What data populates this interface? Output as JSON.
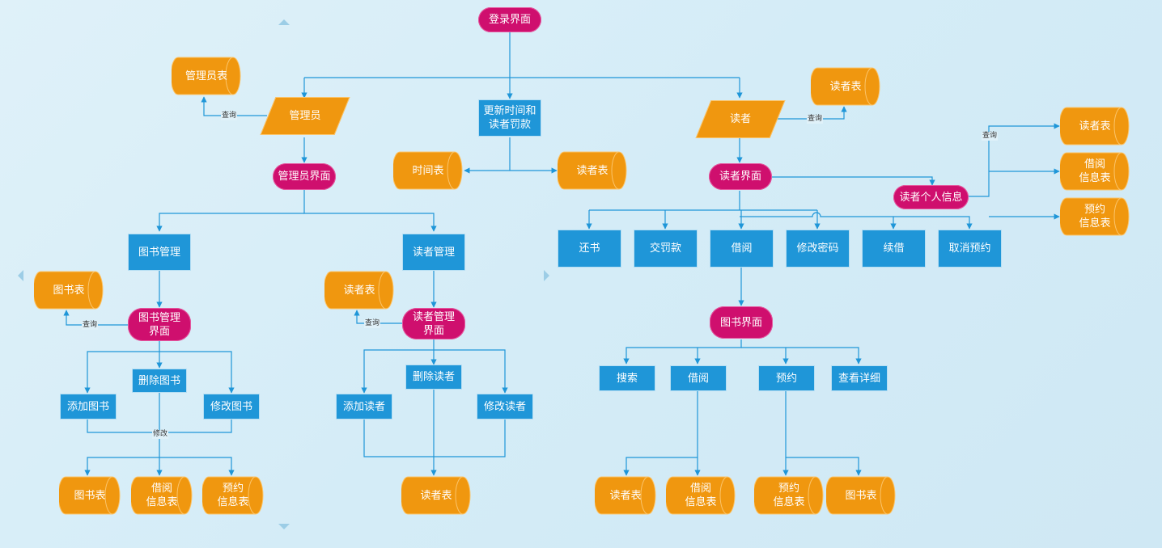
{
  "nodes": {
    "login": "登录界面",
    "admin": "管理员",
    "admin_table": "管理员表",
    "update": "更新时间和\n读者罚款",
    "time_table": "时间表",
    "reader_table_mid": "读者表",
    "reader": "读者",
    "reader_table_top": "读者表",
    "admin_ui": "管理员界面",
    "reader_ui": "读者界面",
    "reader_info": "读者个人信息",
    "ri_reader_table": "读者表",
    "ri_borrow_table": "借阅\n信息表",
    "ri_reserve_table": "预约\n信息表",
    "book_mgmt": "图书管理",
    "reader_mgmt": "读者管理",
    "book_table_1": "图书表",
    "book_mgmt_ui": "图书管理\n界面",
    "reader_table_2": "读者表",
    "reader_mgmt_ui": "读者管理\n界面",
    "del_book": "删除图书",
    "add_book": "添加图书",
    "mod_book": "修改图书",
    "del_reader": "删除读者",
    "add_reader": "添加读者",
    "mod_reader": "修改读者",
    "bm_book_table": "图书表",
    "bm_borrow_table": "借阅\n信息表",
    "bm_reserve_table": "预约\n信息表",
    "rm_reader_table": "读者表",
    "return_book": "还书",
    "pay_fine": "交罚款",
    "borrow": "借阅",
    "change_pwd": "修改密码",
    "renew": "续借",
    "cancel_reserve": "取消预约",
    "book_ui": "图书界面",
    "search": "搜索",
    "borrow2": "借阅",
    "reserve": "预约",
    "view_detail": "查看详细",
    "b_reader_table": "读者表",
    "b_borrow_table": "借阅\n信息表",
    "b_reserve_table": "预约\n信息表",
    "b_book_table": "图书表"
  },
  "labels": {
    "query": "查询",
    "modify": "修改"
  },
  "colors": {
    "terminal": "#cf0f6e",
    "process": "#1f96d8",
    "data": "#f0970f",
    "line": "#1f96d8"
  }
}
